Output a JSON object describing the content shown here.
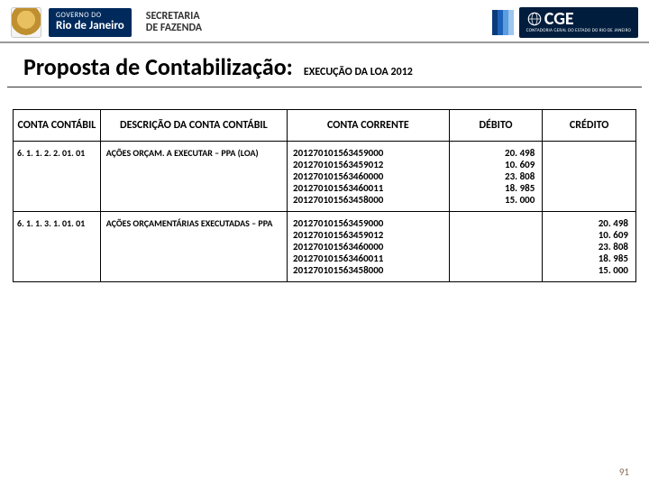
{
  "header": {
    "gov_line1": "GOVERNO DO",
    "gov_line2": "Rio de Janeiro",
    "sefaz_line1": "SECRETARIA",
    "sefaz_line2": "DE FAZENDA",
    "cge_label": "CGE",
    "cge_sub": "CONTADORIA GERAL DO ESTADO DO RIO DE JANEIRO"
  },
  "title": {
    "main": "Proposta de Contabilização:",
    "sub": "EXECUÇÃO DA LOA 2012"
  },
  "table": {
    "columns": [
      "CONTA CONTÁBIL",
      "DESCRIÇÃO DA CONTA CONTÁBIL",
      "CONTA CORRENTE",
      "DÉBITO",
      "CRÉDITO"
    ],
    "rows": [
      {
        "code": "6. 1. 1. 2. 2. 01. 01",
        "desc": "AÇÕES ORÇAM. A EXECUTAR – PPA (LOA)",
        "cc": [
          "201270101563459000",
          "201270101563459012",
          "201270101563460000",
          "201270101563460011",
          "201270101563458000"
        ],
        "debito": [
          "20. 498",
          "10. 609",
          "23. 808",
          "18. 985",
          "15. 000"
        ],
        "credito": []
      },
      {
        "code": "6. 1. 1. 3. 1. 01. 01",
        "desc": "AÇÕES ORÇAMENTÁRIAS EXECUTADAS – PPA",
        "cc": [
          "201270101563459000",
          "201270101563459012",
          "201270101563460000",
          "201270101563460011",
          "201270101563458000"
        ],
        "debito": [],
        "credito": [
          "20. 498",
          "10. 609",
          "23. 808",
          "18. 985",
          "15. 000"
        ]
      }
    ]
  },
  "page_number": "91"
}
